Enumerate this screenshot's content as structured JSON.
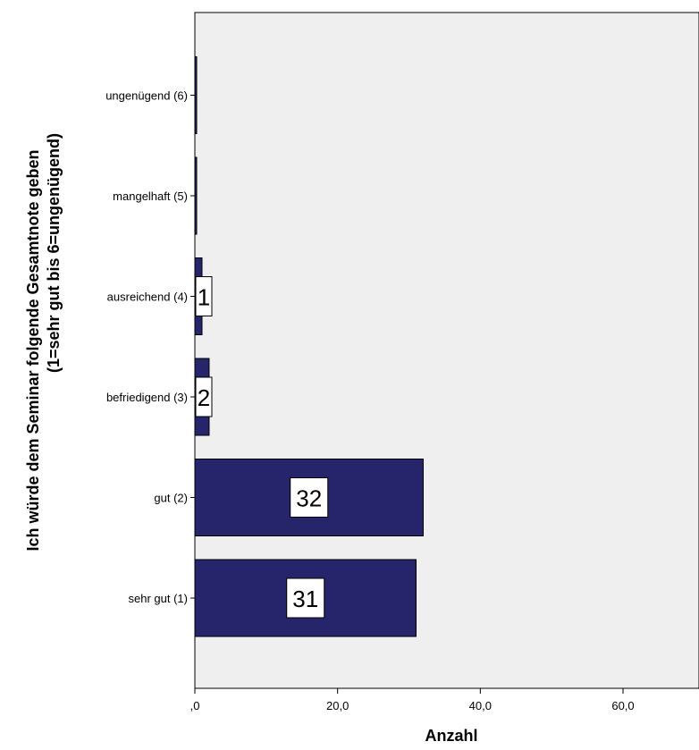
{
  "chart_data": {
    "type": "bar",
    "orientation": "horizontal",
    "categories": [
      "sehr gut (1)",
      "gut (2)",
      "befriedigend (3)",
      "ausreichend (4)",
      "mangelhaft (5)",
      "ungenügend (6)"
    ],
    "values": [
      31,
      32,
      2,
      1,
      0,
      0
    ],
    "data_labels": [
      "31",
      "32",
      "2",
      "1",
      "",
      ""
    ],
    "x_ticks": [
      ",0",
      "20,0",
      "40,0",
      "60,0"
    ],
    "xlim": [
      0,
      72
    ],
    "xlabel": "Anzahl",
    "ylabel_line1": "Ich würde dem Seminar folgende Gesamtnote geben",
    "ylabel_line2": "(1=sehr gut bis 6=ungenügend)",
    "grid": false,
    "colors": {
      "bar": "#26246a",
      "plot_background": "#efefef",
      "label_box": "#ffffff"
    }
  }
}
